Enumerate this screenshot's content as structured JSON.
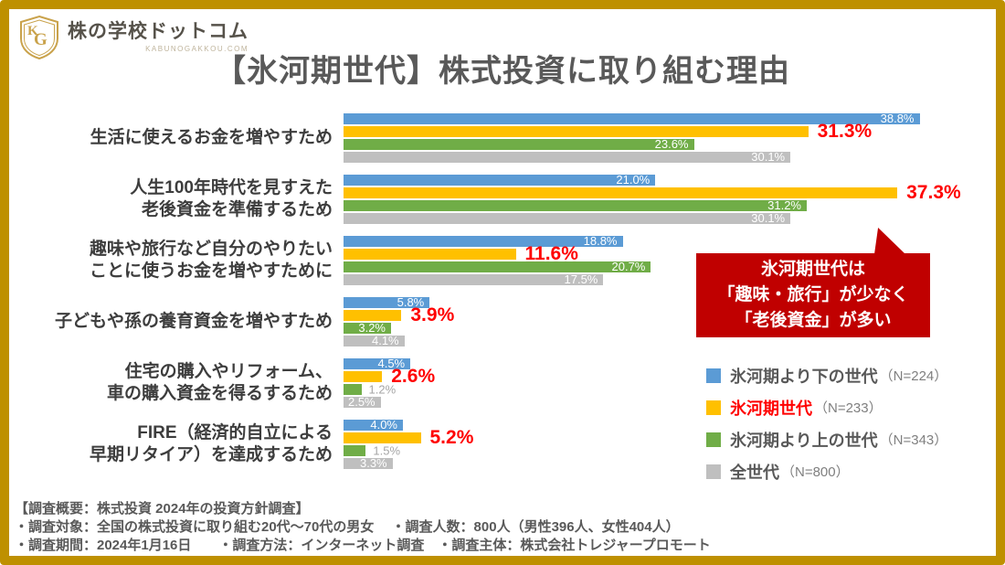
{
  "logo": {
    "brand": "株の学校ドットコム",
    "domain": "KABUNOGAKKOU.COM",
    "monogram_k": "K",
    "monogram_g": "G"
  },
  "title": "【氷河期世代】株式投資に取り組む理由",
  "colors": {
    "frame_gold": "#BE9000",
    "blue": "#5B9BD5",
    "yellow": "#FFC000",
    "green": "#70AD47",
    "gray": "#BFBFBF",
    "value_red": "#FF0000",
    "callout_red": "#C00000",
    "text_dark": "#595959"
  },
  "chart_data": {
    "type": "bar",
    "orientation": "horizontal",
    "unit": "%",
    "xlim": [
      0,
      40
    ],
    "grid": false,
    "legend_position": "bottom-right",
    "title": "【氷河期世代】株式投資に取り組む理由",
    "categories": [
      "生活に使えるお金を増やすため",
      "人生100年時代を見すえた\n老後資金を準備するため",
      "趣味や旅行など自分のやりたい\nことに使うお金を増やすために",
      "子どもや孫の養育資金を増やすため",
      "住宅の購入やリフォーム、\n車の購入資金を得るするため",
      "FIRE（経済的自立による\n早期リタイア）を達成するため"
    ],
    "series": [
      {
        "name": "氷河期より下の世代",
        "n_label": "（N=224）",
        "color": "#5B9BD5",
        "highlighted": false,
        "values": [
          38.8,
          21.0,
          18.8,
          5.8,
          4.5,
          4.0
        ]
      },
      {
        "name": "氷河期世代",
        "n_label": "（N=233）",
        "color": "#FFC000",
        "highlighted": true,
        "values": [
          31.3,
          37.3,
          11.6,
          3.9,
          2.6,
          5.2
        ]
      },
      {
        "name": "氷河期より上の世代",
        "n_label": "（N=343）",
        "color": "#70AD47",
        "highlighted": false,
        "values": [
          23.6,
          31.2,
          20.7,
          3.2,
          1.2,
          1.5
        ]
      },
      {
        "name": "全世代",
        "n_label": "（N=800）",
        "color": "#BFBFBF",
        "highlighted": false,
        "values": [
          30.1,
          30.1,
          17.5,
          4.1,
          2.5,
          3.3
        ]
      }
    ]
  },
  "callout": {
    "lines": [
      "氷河期世代は",
      "「趣味・旅行」が少なく",
      "「老後資金」が多い"
    ]
  },
  "footer": {
    "line1": "【調査概要：株式投資 2024年の投資方針調査】",
    "line2": "・調査対象：全国の株式投資に取り組む20代～70代の男女　 ・調査人数：800人（男性396人、女性404人）",
    "line3": "・調査期間：2024年1月16日　　・調査方法：インターネット調査　・調査主体：株式会社トレジャープロモート"
  }
}
